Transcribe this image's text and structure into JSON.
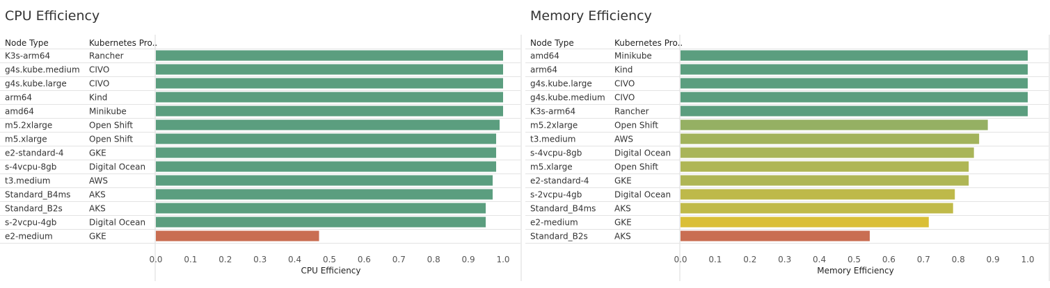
{
  "colors": {
    "green": "#5b9e7f",
    "red": "#c96e52",
    "gradient_mid": "#a7b55a",
    "gradient_yellow": "#e0c033"
  },
  "headers": {
    "node_type": "Node Type",
    "kubernetes_provider": "Kubernetes Pro.."
  },
  "chart_data": [
    {
      "type": "bar",
      "orientation": "horizontal",
      "title": "CPU Efficiency",
      "xlabel": "CPU Efficiency",
      "xlim": [
        0,
        1
      ],
      "ticks": [
        "0.0",
        "0.1",
        "0.2",
        "0.3",
        "0.4",
        "0.5",
        "0.6",
        "0.7",
        "0.8",
        "0.9",
        "1.0"
      ],
      "rows": [
        {
          "node": "K3s-arm64",
          "provider": "Rancher",
          "value": 1.0
        },
        {
          "node": "g4s.kube.medium",
          "provider": "CIVO",
          "value": 1.0
        },
        {
          "node": "g4s.kube.large",
          "provider": "CIVO",
          "value": 1.0
        },
        {
          "node": "arm64",
          "provider": "Kind",
          "value": 1.0
        },
        {
          "node": "amd64",
          "provider": "Minikube",
          "value": 1.0
        },
        {
          "node": "m5.2xlarge",
          "provider": "Open Shift",
          "value": 0.99
        },
        {
          "node": "m5.xlarge",
          "provider": "Open Shift",
          "value": 0.98
        },
        {
          "node": "e2-standard-4",
          "provider": "GKE",
          "value": 0.98
        },
        {
          "node": "s-4vcpu-8gb",
          "provider": "Digital Ocean",
          "value": 0.98
        },
        {
          "node": "t3.medium",
          "provider": "AWS",
          "value": 0.97
        },
        {
          "node": "Standard_B4ms",
          "provider": "AKS",
          "value": 0.97
        },
        {
          "node": "Standard_B2s",
          "provider": "AKS",
          "value": 0.95
        },
        {
          "node": "s-2vcpu-4gb",
          "provider": "Digital Ocean",
          "value": 0.95
        },
        {
          "node": "e2-medium",
          "provider": "GKE",
          "value": 0.47
        }
      ]
    },
    {
      "type": "bar",
      "orientation": "horizontal",
      "title": "Memory Efficiency",
      "xlabel": "Memory Efficiency",
      "xlim": [
        0,
        1
      ],
      "ticks": [
        "0.0",
        "0.1",
        "0.2",
        "0.3",
        "0.4",
        "0.5",
        "0.6",
        "0.7",
        "0.8",
        "0.9",
        "1.0"
      ],
      "rows": [
        {
          "node": "amd64",
          "provider": "Minikube",
          "value": 1.0
        },
        {
          "node": "arm64",
          "provider": "Kind",
          "value": 1.0
        },
        {
          "node": "g4s.kube.large",
          "provider": "CIVO",
          "value": 1.0
        },
        {
          "node": "g4s.kube.medium",
          "provider": "CIVO",
          "value": 1.0
        },
        {
          "node": "K3s-arm64",
          "provider": "Rancher",
          "value": 1.0
        },
        {
          "node": "m5.2xlarge",
          "provider": "Open Shift",
          "value": 0.885
        },
        {
          "node": "t3.medium",
          "provider": "AWS",
          "value": 0.86
        },
        {
          "node": "s-4vcpu-8gb",
          "provider": "Digital Ocean",
          "value": 0.845
        },
        {
          "node": "m5.xlarge",
          "provider": "Open Shift",
          "value": 0.83
        },
        {
          "node": "e2-standard-4",
          "provider": "GKE",
          "value": 0.83
        },
        {
          "node": "s-2vcpu-4gb",
          "provider": "Digital Ocean",
          "value": 0.79
        },
        {
          "node": "Standard_B4ms",
          "provider": "AKS",
          "value": 0.785
        },
        {
          "node": "e2-medium",
          "provider": "GKE",
          "value": 0.715
        },
        {
          "node": "Standard_B2s",
          "provider": "AKS",
          "value": 0.545
        }
      ]
    }
  ]
}
